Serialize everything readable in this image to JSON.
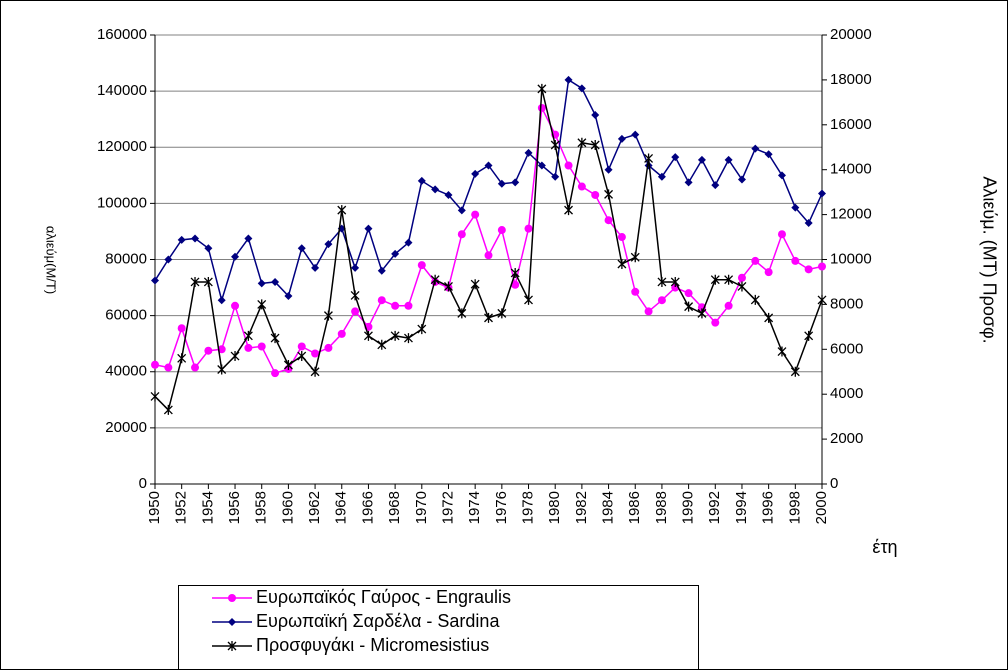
{
  "chart_data": {
    "type": "line",
    "y_label": "αλιεύμ(Μ/Τ)",
    "y2_label": "Αλιεύμ. (ΜΤ) Προσφ.",
    "x_label": "έτη",
    "x": [
      1950,
      1951,
      1952,
      1953,
      1954,
      1955,
      1956,
      1957,
      1958,
      1959,
      1960,
      1961,
      1962,
      1963,
      1964,
      1965,
      1966,
      1967,
      1968,
      1969,
      1970,
      1971,
      1972,
      1973,
      1974,
      1975,
      1976,
      1977,
      1978,
      1979,
      1980,
      1981,
      1982,
      1983,
      1984,
      1985,
      1986,
      1987,
      1988,
      1989,
      1990,
      1991,
      1992,
      1993,
      1994,
      1995,
      1996,
      1997,
      1998,
      1999,
      2000
    ],
    "xlim": [
      1950,
      2000
    ],
    "xticks": [
      1950,
      1952,
      1954,
      1956,
      1958,
      1960,
      1962,
      1964,
      1966,
      1968,
      1970,
      1972,
      1974,
      1976,
      1978,
      1980,
      1982,
      1984,
      1986,
      1988,
      1990,
      1992,
      1994,
      1996,
      1998,
      2000
    ],
    "ylim": [
      0,
      160000
    ],
    "yticks": [
      0,
      20000,
      40000,
      60000,
      80000,
      100000,
      120000,
      140000,
      160000
    ],
    "y2lim": [
      0,
      20000
    ],
    "y2ticks": [
      0,
      2000,
      4000,
      6000,
      8000,
      10000,
      12000,
      14000,
      16000,
      18000,
      20000
    ],
    "grid": true,
    "series": [
      {
        "name": "Ευρωπαϊκός Γαύρος - Engraulis",
        "color": "#ff00ff",
        "marker": "circle",
        "values": [
          42500,
          41500,
          55500,
          41500,
          47500,
          48000,
          63500,
          48500,
          49000,
          39500,
          41000,
          49000,
          46500,
          48500,
          53500,
          61500,
          56000,
          65500,
          63500,
          63500,
          78000,
          72000,
          70000,
          89000,
          96000,
          81500,
          90500,
          71000,
          91000,
          134000,
          124500,
          113500,
          106000,
          103000,
          94000,
          88000,
          68500,
          61500,
          65500,
          70000,
          68000,
          63000,
          57500,
          63500,
          73500,
          79500,
          75500,
          89000,
          79500,
          76500,
          77500
        ]
      },
      {
        "name": "Ευρωπαϊκή Σαρδέλα - Sardina",
        "color": "#000080",
        "marker": "diamond",
        "values": [
          72500,
          80000,
          87000,
          87500,
          84000,
          65500,
          81000,
          87500,
          71500,
          72000,
          67000,
          84000,
          77000,
          85500,
          91000,
          77000,
          91000,
          76000,
          82000,
          86000,
          108000,
          105000,
          103000,
          97500,
          110500,
          113500,
          107000,
          107500,
          118000,
          113500,
          109500,
          144000,
          141000,
          131500,
          112000,
          123000,
          124500,
          113500,
          109500,
          116500,
          107500,
          115500,
          106500,
          115500,
          108500,
          119500,
          117500,
          110000,
          98500,
          93000,
          103500
        ]
      },
      {
        "name": "Προσφυγάκι - Micromesistius",
        "color": "#000000",
        "marker": "star",
        "axis": "y2",
        "values": [
          3900,
          3300,
          5600,
          9000,
          9000,
          5100,
          5700,
          6600,
          8000,
          6500,
          5300,
          5700,
          5000,
          7500,
          12200,
          8400,
          6600,
          6200,
          6600,
          6500,
          6900,
          9100,
          8800,
          7600,
          8900,
          7400,
          7600,
          9400,
          8200,
          17600,
          15100,
          12200,
          15200,
          15100,
          12900,
          9800,
          10100,
          14500,
          9000,
          9000,
          7900,
          7600,
          9100,
          9100,
          8800,
          8200,
          7400,
          5900,
          5000,
          6600,
          8200
        ]
      }
    ]
  }
}
